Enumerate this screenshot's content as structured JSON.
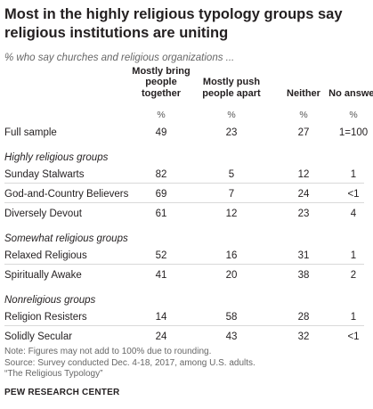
{
  "chart_data": {
    "type": "table",
    "title_lines": [
      "Most in the highly religious typology groups say",
      "religious institutions are uniting"
    ],
    "subtitle": "% who say churches and religious organizations ...",
    "columns": [
      {
        "label_lines": [
          "Mostly bring",
          "people",
          "together"
        ],
        "unit": "%"
      },
      {
        "label_lines": [
          "Mostly push",
          "people apart"
        ],
        "unit": "%"
      },
      {
        "label_lines": [
          "Neither"
        ],
        "unit": "%"
      },
      {
        "label_lines": [
          "No answer"
        ],
        "unit": "%"
      }
    ],
    "rows": [
      {
        "kind": "row",
        "label": "Full sample",
        "values": [
          "49",
          "23",
          "27",
          "1=100"
        ]
      },
      {
        "kind": "group",
        "label": "Highly religious groups"
      },
      {
        "kind": "row",
        "label": "Sunday Stalwarts",
        "values": [
          "82",
          "5",
          "12",
          "1"
        ]
      },
      {
        "kind": "row",
        "label": "God-and-Country Believers",
        "values": [
          "69",
          "7",
          "24",
          "<1"
        ]
      },
      {
        "kind": "row",
        "label": "Diversely Devout",
        "values": [
          "61",
          "12",
          "23",
          "4"
        ]
      },
      {
        "kind": "group",
        "label": "Somewhat religious groups"
      },
      {
        "kind": "row",
        "label": "Relaxed Religious",
        "values": [
          "52",
          "16",
          "31",
          "1"
        ]
      },
      {
        "kind": "row",
        "label": "Spiritually Awake",
        "values": [
          "41",
          "20",
          "38",
          "2"
        ]
      },
      {
        "kind": "group",
        "label": "Nonreligious groups"
      },
      {
        "kind": "row",
        "label": "Religion Resisters",
        "values": [
          "14",
          "58",
          "28",
          "1"
        ]
      },
      {
        "kind": "row",
        "label": "Solidly Secular",
        "values": [
          "24",
          "43",
          "32",
          "<1"
        ]
      }
    ],
    "notes": [
      "Note: Figures may not add to 100% due to rounding.",
      "Source: Survey conducted Dec. 4-18, 2017, among U.S. adults.",
      "“The Religious Typology”"
    ],
    "source_label": "PEW RESEARCH CENTER"
  }
}
